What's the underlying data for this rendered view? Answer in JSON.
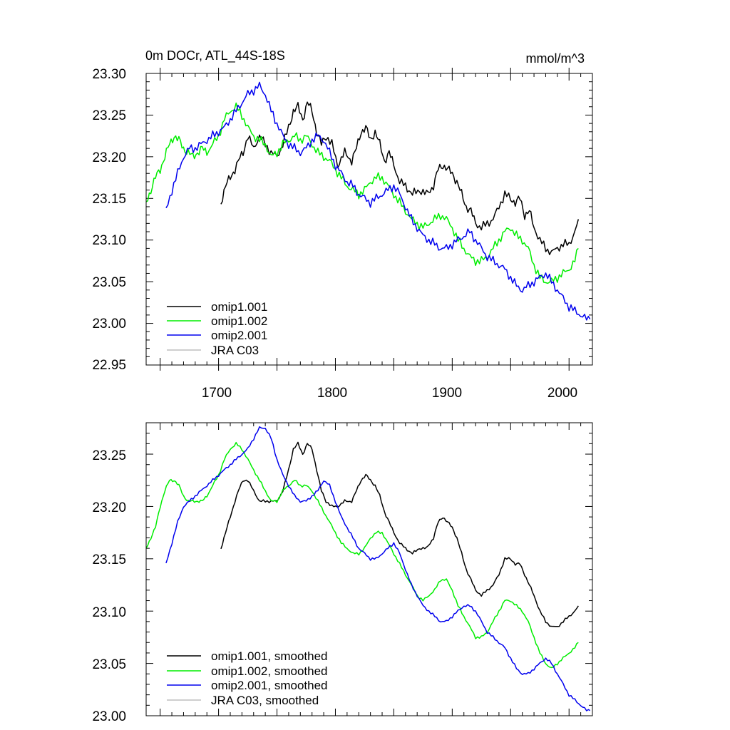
{
  "colors": {
    "omip1.001": "#000000",
    "omip1.002": "#00ee00",
    "omip2.001": "#0000ee",
    "JRA C03": "#bdbdbd"
  },
  "chart_data": [
    {
      "type": "line",
      "title": "0m DOCr, ATL_44S-18S",
      "units": "mmol/m^3",
      "xlabel": "",
      "ylabel": "",
      "xlim": [
        1638,
        2020
      ],
      "ylim": [
        22.95,
        23.3
      ],
      "x_ticks": [
        1700,
        1800,
        1900,
        2000
      ],
      "x_tick_labels": [
        "1700",
        "1800",
        "1900",
        "2000"
      ],
      "y_ticks": [
        22.95,
        23.0,
        23.05,
        23.1,
        23.15,
        23.2,
        23.25,
        23.3
      ],
      "y_tick_labels": [
        "22.95",
        "23.00",
        "23.05",
        "23.10",
        "23.15",
        "23.20",
        "23.25",
        "23.30"
      ],
      "legend_position": "bottom-left",
      "legend": [
        "omip1.001",
        "omip1.002",
        "omip2.001",
        "JRA C03"
      ],
      "noise": 0.006,
      "series": [
        {
          "name": "omip1.001",
          "x": [
            1702,
            1706,
            1710,
            1714,
            1717,
            1721,
            1725,
            1730,
            1735,
            1740,
            1745,
            1750,
            1755,
            1760,
            1764,
            1768,
            1772,
            1776,
            1780,
            1784,
            1788,
            1792,
            1797,
            1802,
            1808,
            1814,
            1818,
            1822,
            1826,
            1830,
            1834,
            1838,
            1842,
            1846,
            1850,
            1855,
            1860,
            1866,
            1872,
            1878,
            1884,
            1888,
            1892,
            1896,
            1900,
            1904,
            1908,
            1912,
            1916,
            1920,
            1925,
            1930,
            1935,
            1940,
            1945,
            1950,
            1954,
            1958,
            1962,
            1966,
            1970,
            1975,
            1980,
            1985,
            1990,
            1995,
            2000,
            2005,
            2008
          ],
          "y": [
            23.145,
            23.165,
            23.175,
            23.185,
            23.195,
            23.205,
            23.225,
            23.21,
            23.225,
            23.215,
            23.205,
            23.2,
            23.215,
            23.235,
            23.255,
            23.26,
            23.245,
            23.265,
            23.255,
            23.23,
            23.215,
            23.225,
            23.215,
            23.19,
            23.205,
            23.195,
            23.21,
            23.23,
            23.235,
            23.22,
            23.23,
            23.215,
            23.195,
            23.205,
            23.19,
            23.17,
            23.165,
            23.155,
            23.16,
            23.155,
            23.165,
            23.185,
            23.19,
            23.185,
            23.18,
            23.17,
            23.155,
            23.14,
            23.135,
            23.12,
            23.115,
            23.12,
            23.125,
            23.14,
            23.155,
            23.15,
            23.145,
            23.15,
            23.13,
            23.135,
            23.115,
            23.1,
            23.09,
            23.085,
            23.09,
            23.095,
            23.095,
            23.11,
            23.125
          ]
        },
        {
          "name": "omip1.002",
          "x": [
            1638,
            1642,
            1646,
            1650,
            1654,
            1658,
            1662,
            1666,
            1670,
            1674,
            1678,
            1682,
            1686,
            1690,
            1695,
            1700,
            1705,
            1710,
            1715,
            1720,
            1725,
            1730,
            1735,
            1740,
            1745,
            1750,
            1755,
            1760,
            1765,
            1770,
            1775,
            1780,
            1785,
            1790,
            1795,
            1800,
            1805,
            1810,
            1815,
            1820,
            1825,
            1830,
            1835,
            1840,
            1845,
            1850,
            1855,
            1860,
            1865,
            1870,
            1875,
            1880,
            1885,
            1890,
            1895,
            1900,
            1905,
            1910,
            1915,
            1920,
            1925,
            1930,
            1935,
            1940,
            1945,
            1950,
            1955,
            1960,
            1965,
            1970,
            1975,
            1980,
            1985,
            1990,
            1995,
            2000,
            2005,
            2008
          ],
          "y": [
            23.145,
            23.16,
            23.175,
            23.185,
            23.2,
            23.215,
            23.225,
            23.22,
            23.21,
            23.205,
            23.2,
            23.205,
            23.21,
            23.205,
            23.215,
            23.225,
            23.245,
            23.255,
            23.26,
            23.25,
            23.235,
            23.225,
            23.22,
            23.215,
            23.2,
            23.205,
            23.215,
            23.22,
            23.225,
            23.22,
            23.225,
            23.215,
            23.205,
            23.2,
            23.195,
            23.185,
            23.175,
            23.165,
            23.16,
            23.155,
            23.16,
            23.17,
            23.175,
            23.175,
            23.165,
            23.155,
            23.145,
            23.135,
            23.125,
            23.12,
            23.115,
            23.12,
            23.125,
            23.13,
            23.125,
            23.115,
            23.1,
            23.09,
            23.08,
            23.075,
            23.075,
            23.08,
            23.09,
            23.1,
            23.11,
            23.115,
            23.105,
            23.1,
            23.09,
            23.07,
            23.055,
            23.05,
            23.05,
            23.055,
            23.06,
            23.065,
            23.075,
            23.09
          ]
        },
        {
          "name": "omip2.001",
          "x": [
            1655,
            1660,
            1665,
            1670,
            1675,
            1680,
            1685,
            1690,
            1695,
            1700,
            1705,
            1710,
            1715,
            1720,
            1725,
            1730,
            1735,
            1740,
            1745,
            1750,
            1755,
            1760,
            1765,
            1770,
            1775,
            1780,
            1785,
            1790,
            1795,
            1800,
            1805,
            1810,
            1815,
            1820,
            1825,
            1830,
            1835,
            1840,
            1845,
            1850,
            1855,
            1860,
            1865,
            1870,
            1875,
            1880,
            1885,
            1890,
            1895,
            1900,
            1905,
            1910,
            1915,
            1920,
            1925,
            1930,
            1935,
            1940,
            1945,
            1950,
            1955,
            1960,
            1965,
            1970,
            1975,
            1980,
            1985,
            1990,
            1995,
            2000,
            2005,
            2010,
            2015,
            2018
          ],
          "y": [
            23.135,
            23.16,
            23.18,
            23.2,
            23.21,
            23.21,
            23.215,
            23.22,
            23.225,
            23.23,
            23.235,
            23.245,
            23.255,
            23.265,
            23.275,
            23.28,
            23.285,
            23.275,
            23.255,
            23.24,
            23.225,
            23.215,
            23.21,
            23.205,
            23.21,
            23.22,
            23.225,
            23.22,
            23.205,
            23.19,
            23.18,
            23.17,
            23.165,
            23.155,
            23.15,
            23.145,
            23.15,
            23.155,
            23.16,
            23.165,
            23.155,
            23.14,
            23.125,
            23.115,
            23.105,
            23.1,
            23.095,
            23.09,
            23.09,
            23.095,
            23.1,
            23.105,
            23.11,
            23.1,
            23.09,
            23.08,
            23.075,
            23.07,
            23.065,
            23.055,
            23.045,
            23.04,
            23.045,
            23.05,
            23.055,
            23.06,
            23.05,
            23.04,
            23.03,
            23.02,
            23.015,
            23.01,
            23.005,
            23.005
          ]
        },
        {
          "name": "JRA C03",
          "x": [],
          "y": []
        }
      ]
    },
    {
      "type": "line",
      "title": "",
      "xlabel": "",
      "ylabel": "",
      "xlim": [
        1638,
        2020
      ],
      "ylim": [
        23.0,
        23.28
      ],
      "x_ticks": [
        1700,
        1800,
        1900,
        2000
      ],
      "y_ticks": [
        23.0,
        23.05,
        23.1,
        23.15,
        23.2,
        23.25
      ],
      "y_tick_labels": [
        "23.00",
        "23.05",
        "23.10",
        "23.15",
        "23.20",
        "23.25"
      ],
      "legend_position": "bottom-left",
      "legend": [
        "omip1.001, smoothed",
        "omip1.002, smoothed",
        "omip2.001, smoothed",
        "JRA C03, smoothed"
      ],
      "noise": 0.0015,
      "series": [
        {
          "name": "omip1.001, smoothed",
          "x": [
            1702,
            1706,
            1710,
            1714,
            1717,
            1721,
            1725,
            1730,
            1735,
            1740,
            1745,
            1750,
            1755,
            1760,
            1764,
            1768,
            1772,
            1776,
            1780,
            1784,
            1788,
            1792,
            1797,
            1802,
            1808,
            1814,
            1818,
            1822,
            1826,
            1830,
            1834,
            1838,
            1842,
            1846,
            1850,
            1855,
            1860,
            1866,
            1872,
            1878,
            1884,
            1888,
            1892,
            1896,
            1900,
            1904,
            1908,
            1912,
            1916,
            1920,
            1925,
            1930,
            1935,
            1940,
            1945,
            1950,
            1954,
            1958,
            1962,
            1966,
            1970,
            1975,
            1980,
            1985,
            1990,
            1995,
            2000,
            2005,
            2008
          ],
          "y": [
            23.16,
            23.175,
            23.19,
            23.205,
            23.215,
            23.225,
            23.225,
            23.215,
            23.205,
            23.205,
            23.205,
            23.205,
            23.215,
            23.235,
            23.255,
            23.26,
            23.25,
            23.26,
            23.255,
            23.235,
            23.215,
            23.205,
            23.2,
            23.2,
            23.205,
            23.205,
            23.215,
            23.225,
            23.23,
            23.225,
            23.22,
            23.21,
            23.195,
            23.185,
            23.175,
            23.165,
            23.16,
            23.155,
            23.16,
            23.16,
            23.17,
            23.185,
            23.19,
            23.185,
            23.18,
            23.17,
            23.155,
            23.14,
            23.13,
            23.12,
            23.115,
            23.12,
            23.125,
            23.135,
            23.15,
            23.15,
            23.145,
            23.145,
            23.135,
            23.125,
            23.115,
            23.1,
            23.09,
            23.085,
            23.085,
            23.09,
            23.095,
            23.1,
            23.105
          ]
        },
        {
          "name": "omip1.002, smoothed",
          "x": [
            1638,
            1642,
            1646,
            1650,
            1654,
            1658,
            1662,
            1666,
            1670,
            1674,
            1678,
            1682,
            1686,
            1690,
            1695,
            1700,
            1705,
            1710,
            1715,
            1720,
            1725,
            1730,
            1735,
            1740,
            1745,
            1750,
            1755,
            1760,
            1765,
            1770,
            1775,
            1780,
            1785,
            1790,
            1795,
            1800,
            1805,
            1810,
            1815,
            1820,
            1825,
            1830,
            1835,
            1840,
            1845,
            1850,
            1855,
            1860,
            1865,
            1870,
            1875,
            1880,
            1885,
            1890,
            1895,
            1900,
            1905,
            1910,
            1915,
            1920,
            1925,
            1930,
            1935,
            1940,
            1945,
            1950,
            1955,
            1960,
            1965,
            1970,
            1975,
            1980,
            1985,
            1990,
            1995,
            2000,
            2005,
            2008
          ],
          "y": [
            23.16,
            23.17,
            23.18,
            23.2,
            23.215,
            23.225,
            23.225,
            23.22,
            23.21,
            23.205,
            23.205,
            23.205,
            23.205,
            23.21,
            23.22,
            23.23,
            23.245,
            23.255,
            23.26,
            23.255,
            23.245,
            23.235,
            23.225,
            23.215,
            23.205,
            23.205,
            23.215,
            23.22,
            23.225,
            23.22,
            23.22,
            23.215,
            23.205,
            23.195,
            23.185,
            23.175,
            23.165,
            23.16,
            23.155,
            23.155,
            23.16,
            23.17,
            23.175,
            23.175,
            23.165,
            23.155,
            23.145,
            23.135,
            23.125,
            23.115,
            23.11,
            23.115,
            23.12,
            23.13,
            23.13,
            23.12,
            23.105,
            23.095,
            23.085,
            23.075,
            23.075,
            23.08,
            23.09,
            23.1,
            23.11,
            23.11,
            23.105,
            23.1,
            23.09,
            23.075,
            23.06,
            23.05,
            23.045,
            23.05,
            23.055,
            23.06,
            23.065,
            23.07
          ]
        },
        {
          "name": "omip2.001, smoothed",
          "x": [
            1655,
            1660,
            1665,
            1670,
            1675,
            1680,
            1685,
            1690,
            1695,
            1700,
            1705,
            1710,
            1715,
            1720,
            1725,
            1730,
            1735,
            1740,
            1745,
            1750,
            1755,
            1760,
            1765,
            1770,
            1775,
            1780,
            1785,
            1790,
            1795,
            1800,
            1805,
            1810,
            1815,
            1820,
            1825,
            1830,
            1835,
            1840,
            1845,
            1850,
            1855,
            1860,
            1865,
            1870,
            1875,
            1880,
            1885,
            1890,
            1895,
            1900,
            1905,
            1910,
            1915,
            1920,
            1925,
            1930,
            1935,
            1940,
            1945,
            1950,
            1955,
            1960,
            1965,
            1970,
            1975,
            1980,
            1985,
            1990,
            1995,
            2000,
            2005,
            2010,
            2015,
            2018
          ],
          "y": [
            23.145,
            23.165,
            23.185,
            23.2,
            23.205,
            23.21,
            23.215,
            23.22,
            23.225,
            23.23,
            23.235,
            23.24,
            23.245,
            23.25,
            23.255,
            23.265,
            23.275,
            23.275,
            23.265,
            23.245,
            23.23,
            23.22,
            23.21,
            23.205,
            23.205,
            23.21,
            23.215,
            23.225,
            23.22,
            23.205,
            23.19,
            23.18,
            23.17,
            23.16,
            23.155,
            23.15,
            23.15,
            23.155,
            23.16,
            23.165,
            23.155,
            23.14,
            23.125,
            23.115,
            23.105,
            23.1,
            23.095,
            23.09,
            23.09,
            23.095,
            23.1,
            23.105,
            23.105,
            23.1,
            23.09,
            23.08,
            23.075,
            23.07,
            23.065,
            23.055,
            23.045,
            23.04,
            23.04,
            23.045,
            23.05,
            23.055,
            23.05,
            23.04,
            23.03,
            23.02,
            23.015,
            23.01,
            23.005,
            23.005
          ]
        },
        {
          "name": "JRA C03, smoothed",
          "x": [],
          "y": []
        }
      ]
    }
  ]
}
